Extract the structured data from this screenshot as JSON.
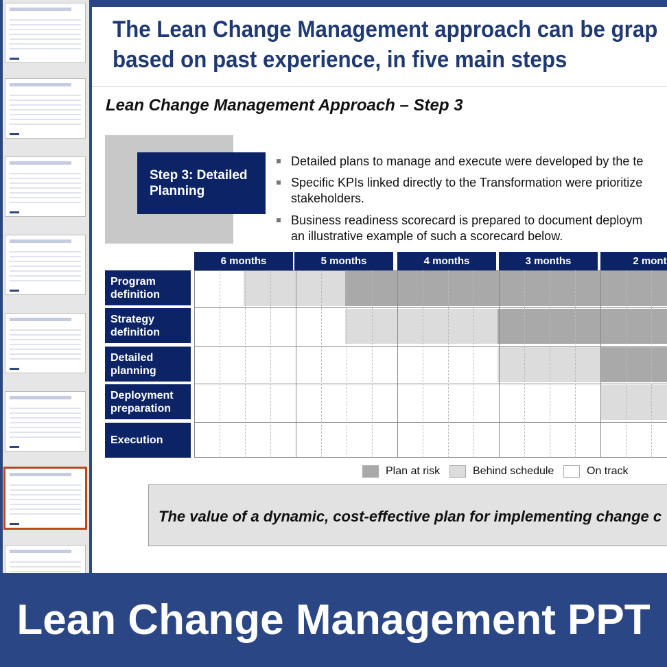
{
  "slide": {
    "title_lines": [
      "The Lean Change Management approach can be grap",
      "based on past experience, in five main steps"
    ],
    "subtitle": "Lean Change Management Approach – Step 3",
    "step_box": "Step 3: Detailed Planning",
    "bullets": [
      [
        "Detailed plans to manage and execute were developed by the te"
      ],
      [
        "Specific KPIs linked directly to the Transformation were prioritize",
        "stakeholders."
      ],
      [
        "Business readiness scorecard is prepared to document deploym",
        "an illustrative example of such a scorecard below."
      ]
    ],
    "table": {
      "columns": [
        "6 months",
        "5 months",
        "4 months",
        "3 months",
        "2 mont"
      ],
      "rows": [
        "Program definition",
        "Strategy definition",
        "Detailed planning",
        "Deployment preparation",
        "Execution"
      ]
    },
    "legend": [
      "Plan at risk",
      "Behind schedule",
      "On track"
    ],
    "callout": "The value of a dynamic, cost-effective plan for implementing change c"
  },
  "banner": {
    "title": "Lean Change Management PPT"
  }
}
